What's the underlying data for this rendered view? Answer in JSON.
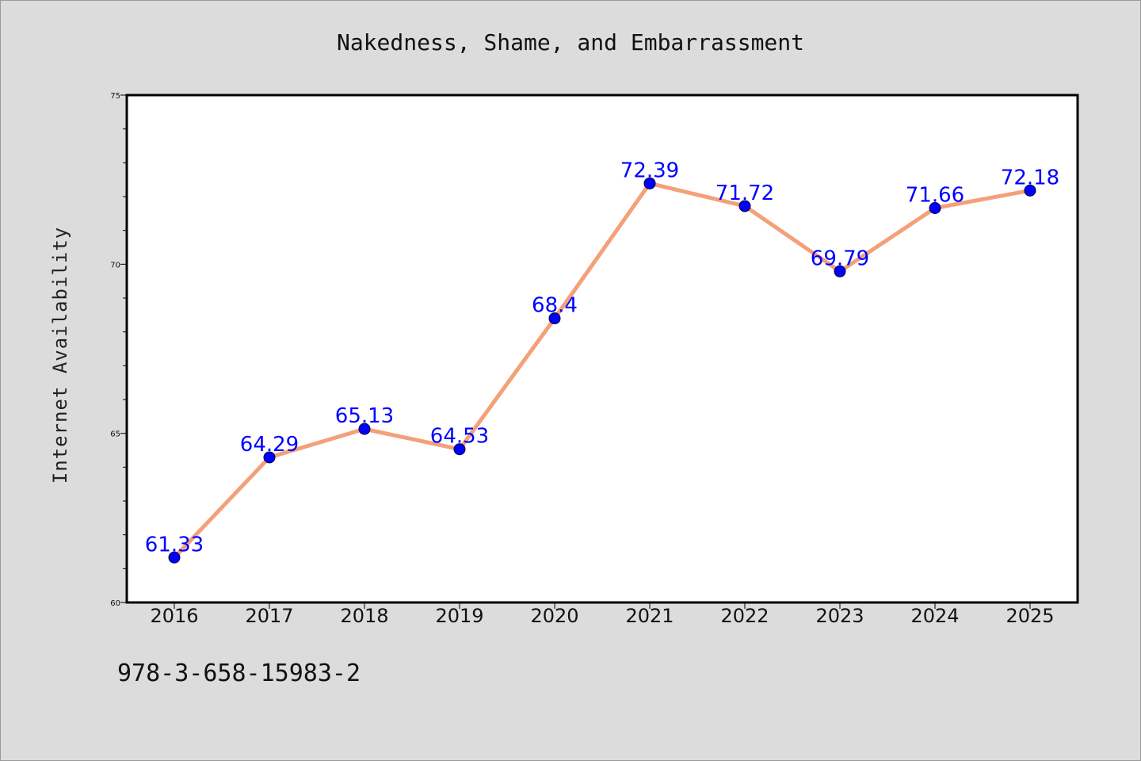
{
  "page": {
    "isbn": "978-3-658-15983-2"
  },
  "colors": {
    "background": "#dcdcdc",
    "plot_background": "#ffffff",
    "line": "#f4a07a",
    "marker": "#0000ff",
    "data_label": "#0000ff"
  },
  "chart_data": {
    "type": "line",
    "title": "Nakedness, Shame, and Embarrassment",
    "xlabel": "",
    "ylabel": "Internet Availability",
    "categories": [
      "2016",
      "2017",
      "2018",
      "2019",
      "2020",
      "2021",
      "2022",
      "2023",
      "2024",
      "2025"
    ],
    "series": [
      {
        "values": [
          61.33,
          64.29,
          65.13,
          64.53,
          68.4,
          72.39,
          71.72,
          69.79,
          71.66,
          72.18
        ],
        "labels": [
          "61.33",
          "64.29",
          "65.13",
          "64.53",
          "68.4",
          "72.39",
          "71.72",
          "69.79",
          "71.66",
          "72.18"
        ]
      }
    ],
    "ylim": [
      60,
      75
    ],
    "yticks": [
      60,
      65,
      70,
      75
    ],
    "grid": false,
    "legend": "none"
  }
}
